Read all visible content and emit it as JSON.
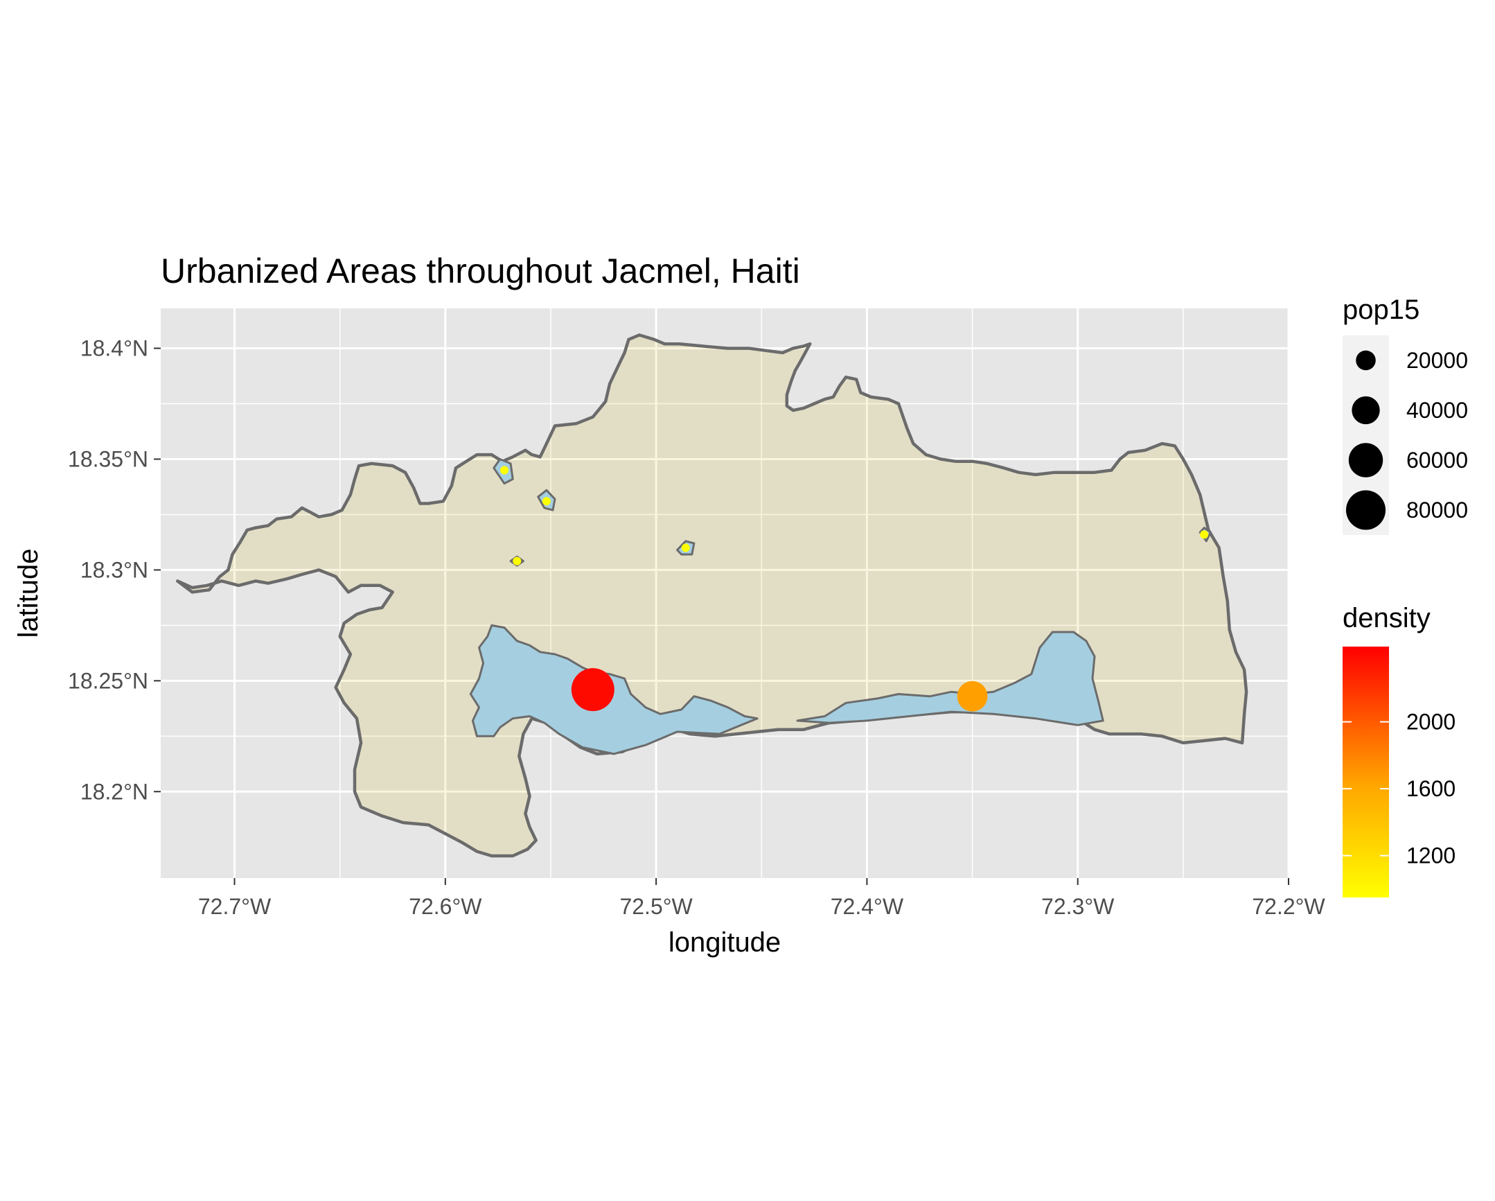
{
  "title": "Urbanized Areas throughout Jacmel, Haiti",
  "xlabel": "longitude",
  "ylabel": "latitude",
  "colors": {
    "panel_bg": "#e6e6e6",
    "grid": "#ffffff",
    "land_fill": "#e2dec6",
    "land_grid": "#faf5de",
    "land_border": "#6b6b6b",
    "urban_fill": "#a5cfe0",
    "density_low": "#ffff00",
    "density_mid": "#ffa500",
    "density_high": "#ff0000"
  },
  "chart_data": {
    "type": "scatter",
    "xlim": [
      -72.735,
      -72.2
    ],
    "ylim": [
      18.161,
      18.418
    ],
    "x_ticks": [
      {
        "value": -72.7,
        "label": "72.7°W"
      },
      {
        "value": -72.6,
        "label": "72.6°W"
      },
      {
        "value": -72.5,
        "label": "72.5°W"
      },
      {
        "value": -72.4,
        "label": "72.4°W"
      },
      {
        "value": -72.3,
        "label": "72.3°W"
      },
      {
        "value": -72.2,
        "label": "72.2°W"
      }
    ],
    "y_ticks": [
      {
        "value": 18.2,
        "label": "18.2°N"
      },
      {
        "value": 18.25,
        "label": "18.25°N"
      },
      {
        "value": 18.3,
        "label": "18.3°N"
      },
      {
        "value": 18.35,
        "label": "18.35°N"
      },
      {
        "value": 18.4,
        "label": "18.4°N"
      }
    ],
    "grid": true,
    "points": [
      {
        "lon": -72.53,
        "lat": 18.246,
        "pop15": 80000,
        "density": 2400
      },
      {
        "lon": -72.35,
        "lat": 18.243,
        "pop15": 40000,
        "density": 1650
      },
      {
        "lon": -72.572,
        "lat": 18.345,
        "pop15": 2000,
        "density": 950
      },
      {
        "lon": -72.552,
        "lat": 18.331,
        "pop15": 2000,
        "density": 950
      },
      {
        "lon": -72.566,
        "lat": 18.304,
        "pop15": 1500,
        "density": 950
      },
      {
        "lon": -72.486,
        "lat": 18.31,
        "pop15": 2000,
        "density": 950
      },
      {
        "lon": -72.24,
        "lat": 18.316,
        "pop15": 2000,
        "density": 950
      }
    ],
    "legend_size": {
      "title": "pop15",
      "entries": [
        {
          "value": 20000,
          "label": "20000"
        },
        {
          "value": 40000,
          "label": "40000"
        },
        {
          "value": 60000,
          "label": "60000"
        },
        {
          "value": 80000,
          "label": "80000"
        }
      ]
    },
    "legend_color": {
      "title": "density",
      "range": [
        950,
        2450
      ],
      "ticks": [
        {
          "value": 1200,
          "label": "1200"
        },
        {
          "value": 1600,
          "label": "1600"
        },
        {
          "value": 2000,
          "label": "2000"
        }
      ]
    },
    "land_outline": [
      [
        -72.727,
        18.295
      ],
      [
        -72.72,
        18.29
      ],
      [
        -72.712,
        18.291
      ],
      [
        -72.707,
        18.297
      ],
      [
        -72.703,
        18.3
      ],
      [
        -72.701,
        18.307
      ],
      [
        -72.697,
        18.313
      ],
      [
        -72.694,
        18.318
      ],
      [
        -72.69,
        18.319
      ],
      [
        -72.684,
        18.32
      ],
      [
        -72.68,
        18.323
      ],
      [
        -72.673,
        18.324
      ],
      [
        -72.668,
        18.328
      ],
      [
        -72.664,
        18.326
      ],
      [
        -72.66,
        18.324
      ],
      [
        -72.654,
        18.325
      ],
      [
        -72.649,
        18.327
      ],
      [
        -72.645,
        18.334
      ],
      [
        -72.643,
        18.341
      ],
      [
        -72.641,
        18.347
      ],
      [
        -72.635,
        18.348
      ],
      [
        -72.625,
        18.347
      ],
      [
        -72.619,
        18.344
      ],
      [
        -72.615,
        18.337
      ],
      [
        -72.612,
        18.33
      ],
      [
        -72.608,
        18.33
      ],
      [
        -72.601,
        18.331
      ],
      [
        -72.597,
        18.338
      ],
      [
        -72.595,
        18.346
      ],
      [
        -72.59,
        18.349
      ],
      [
        -72.585,
        18.352
      ],
      [
        -72.578,
        18.352
      ],
      [
        -72.573,
        18.349
      ],
      [
        -72.568,
        18.351
      ],
      [
        -72.562,
        18.354
      ],
      [
        -72.559,
        18.352
      ],
      [
        -72.555,
        18.351
      ],
      [
        -72.552,
        18.357
      ],
      [
        -72.548,
        18.365
      ],
      [
        -72.538,
        18.366
      ],
      [
        -72.53,
        18.369
      ],
      [
        -72.524,
        18.376
      ],
      [
        -72.522,
        18.384
      ],
      [
        -72.518,
        18.392
      ],
      [
        -72.515,
        18.398
      ],
      [
        -72.513,
        18.404
      ],
      [
        -72.508,
        18.406
      ],
      [
        -72.501,
        18.404
      ],
      [
        -72.496,
        18.402
      ],
      [
        -72.489,
        18.402
      ],
      [
        -72.478,
        18.401
      ],
      [
        -72.466,
        18.4
      ],
      [
        -72.456,
        18.4
      ],
      [
        -72.448,
        18.399
      ],
      [
        -72.44,
        18.398
      ],
      [
        -72.435,
        18.4
      ],
      [
        -72.43,
        18.401
      ],
      [
        -72.427,
        18.402
      ],
      [
        -72.431,
        18.395
      ],
      [
        -72.434,
        18.39
      ],
      [
        -72.436,
        18.385
      ],
      [
        -72.438,
        18.379
      ],
      [
        -72.438,
        18.374
      ],
      [
        -72.435,
        18.372
      ],
      [
        -72.43,
        18.373
      ],
      [
        -72.425,
        18.375
      ],
      [
        -72.42,
        18.377
      ],
      [
        -72.416,
        18.378
      ],
      [
        -72.413,
        18.383
      ],
      [
        -72.41,
        18.387
      ],
      [
        -72.405,
        18.386
      ],
      [
        -72.403,
        18.38
      ],
      [
        -72.398,
        18.378
      ],
      [
        -72.39,
        18.377
      ],
      [
        -72.385,
        18.375
      ],
      [
        -72.381,
        18.364
      ],
      [
        -72.378,
        18.357
      ],
      [
        -72.372,
        18.352
      ],
      [
        -72.365,
        18.35
      ],
      [
        -72.358,
        18.349
      ],
      [
        -72.35,
        18.349
      ],
      [
        -72.343,
        18.348
      ],
      [
        -72.335,
        18.346
      ],
      [
        -72.328,
        18.344
      ],
      [
        -72.32,
        18.343
      ],
      [
        -72.311,
        18.344
      ],
      [
        -72.3,
        18.344
      ],
      [
        -72.292,
        18.344
      ],
      [
        -72.284,
        18.345
      ],
      [
        -72.28,
        18.35
      ],
      [
        -72.276,
        18.353
      ],
      [
        -72.268,
        18.354
      ],
      [
        -72.26,
        18.357
      ],
      [
        -72.254,
        18.356
      ],
      [
        -72.25,
        18.35
      ],
      [
        -72.246,
        18.343
      ],
      [
        -72.242,
        18.334
      ],
      [
        -72.24,
        18.326
      ],
      [
        -72.238,
        18.318
      ],
      [
        -72.233,
        18.31
      ],
      [
        -72.231,
        18.297
      ],
      [
        -72.229,
        18.286
      ],
      [
        -72.228,
        18.273
      ],
      [
        -72.225,
        18.263
      ],
      [
        -72.221,
        18.255
      ],
      [
        -72.22,
        18.245
      ],
      [
        -72.221,
        18.235
      ],
      [
        -72.222,
        18.222
      ],
      [
        -72.23,
        18.224
      ],
      [
        -72.24,
        18.223
      ],
      [
        -72.25,
        18.222
      ],
      [
        -72.26,
        18.225
      ],
      [
        -72.27,
        18.226
      ],
      [
        -72.285,
        18.226
      ],
      [
        -72.292,
        18.228
      ],
      [
        -72.297,
        18.231
      ],
      [
        -72.31,
        18.233
      ],
      [
        -72.323,
        18.234
      ],
      [
        -72.336,
        18.235
      ],
      [
        -72.35,
        18.236
      ],
      [
        -72.36,
        18.236
      ],
      [
        -72.372,
        18.235
      ],
      [
        -72.384,
        18.234
      ],
      [
        -72.395,
        18.233
      ],
      [
        -72.405,
        18.232
      ],
      [
        -72.418,
        18.231
      ],
      [
        -72.43,
        18.228
      ],
      [
        -72.442,
        18.228
      ],
      [
        -72.452,
        18.227
      ],
      [
        -72.462,
        18.226
      ],
      [
        -72.472,
        18.225
      ],
      [
        -72.484,
        18.226
      ],
      [
        -72.494,
        18.229
      ],
      [
        -72.504,
        18.224
      ],
      [
        -72.516,
        18.218
      ],
      [
        -72.528,
        18.217
      ],
      [
        -72.536,
        18.22
      ],
      [
        -72.545,
        18.226
      ],
      [
        -72.552,
        18.231
      ],
      [
        -72.559,
        18.233
      ],
      [
        -72.563,
        18.226
      ],
      [
        -72.565,
        18.216
      ],
      [
        -72.562,
        18.206
      ],
      [
        -72.56,
        18.198
      ],
      [
        -72.562,
        18.19
      ],
      [
        -72.56,
        18.184
      ],
      [
        -72.557,
        18.178
      ],
      [
        -72.561,
        18.174
      ],
      [
        -72.568,
        18.171
      ],
      [
        -72.578,
        18.171
      ],
      [
        -72.585,
        18.173
      ],
      [
        -72.592,
        18.177
      ],
      [
        -72.6,
        18.181
      ],
      [
        -72.608,
        18.185
      ],
      [
        -72.62,
        18.186
      ],
      [
        -72.63,
        18.189
      ],
      [
        -72.64,
        18.193
      ],
      [
        -72.643,
        18.2
      ],
      [
        -72.643,
        18.21
      ],
      [
        -72.64,
        18.222
      ],
      [
        -72.642,
        18.233
      ],
      [
        -72.648,
        18.24
      ],
      [
        -72.652,
        18.247
      ],
      [
        -72.648,
        18.255
      ],
      [
        -72.645,
        18.262
      ],
      [
        -72.65,
        18.27
      ],
      [
        -72.648,
        18.276
      ],
      [
        -72.642,
        18.28
      ],
      [
        -72.636,
        18.282
      ],
      [
        -72.63,
        18.283
      ],
      [
        -72.625,
        18.29
      ],
      [
        -72.631,
        18.293
      ],
      [
        -72.64,
        18.293
      ],
      [
        -72.646,
        18.29
      ],
      [
        -72.652,
        18.297
      ],
      [
        -72.66,
        18.3
      ],
      [
        -72.668,
        18.298
      ],
      [
        -72.675,
        18.296
      ],
      [
        -72.684,
        18.294
      ],
      [
        -72.69,
        18.295
      ],
      [
        -72.698,
        18.293
      ],
      [
        -72.706,
        18.295
      ],
      [
        -72.713,
        18.293
      ],
      [
        -72.72,
        18.292
      ],
      [
        -72.727,
        18.295
      ]
    ],
    "urban_areas": [
      [
        [
          -72.578,
          18.275
        ],
        [
          -72.572,
          18.274
        ],
        [
          -72.566,
          18.268
        ],
        [
          -72.56,
          18.266
        ],
        [
          -72.555,
          18.263
        ],
        [
          -72.548,
          18.262
        ],
        [
          -72.542,
          18.26
        ],
        [
          -72.535,
          18.256
        ],
        [
          -72.53,
          18.254
        ],
        [
          -72.522,
          18.253
        ],
        [
          -72.515,
          18.251
        ],
        [
          -72.512,
          18.244
        ],
        [
          -72.505,
          18.238
        ],
        [
          -72.498,
          18.235
        ],
        [
          -72.488,
          18.237
        ],
        [
          -72.482,
          18.243
        ],
        [
          -72.474,
          18.241
        ],
        [
          -72.466,
          18.238
        ],
        [
          -72.458,
          18.234
        ],
        [
          -72.452,
          18.233
        ],
        [
          -72.47,
          18.226
        ],
        [
          -72.49,
          18.227
        ],
        [
          -72.505,
          18.221
        ],
        [
          -72.52,
          18.217
        ],
        [
          -72.535,
          18.22
        ],
        [
          -72.546,
          18.226
        ],
        [
          -72.553,
          18.231
        ],
        [
          -72.56,
          18.234
        ],
        [
          -72.568,
          18.233
        ],
        [
          -72.574,
          18.229
        ],
        [
          -72.577,
          18.225
        ],
        [
          -72.585,
          18.225
        ],
        [
          -72.587,
          18.232
        ],
        [
          -72.584,
          18.238
        ],
        [
          -72.588,
          18.244
        ],
        [
          -72.584,
          18.251
        ],
        [
          -72.582,
          18.258
        ],
        [
          -72.584,
          18.265
        ],
        [
          -72.58,
          18.27
        ],
        [
          -72.578,
          18.275
        ]
      ],
      [
        [
          -72.433,
          18.232
        ],
        [
          -72.42,
          18.234
        ],
        [
          -72.41,
          18.24
        ],
        [
          -72.395,
          18.242
        ],
        [
          -72.385,
          18.244
        ],
        [
          -72.37,
          18.243
        ],
        [
          -72.36,
          18.245
        ],
        [
          -72.35,
          18.244
        ],
        [
          -72.34,
          18.245
        ],
        [
          -72.33,
          18.249
        ],
        [
          -72.322,
          18.253
        ],
        [
          -72.318,
          18.265
        ],
        [
          -72.312,
          18.272
        ],
        [
          -72.302,
          18.272
        ],
        [
          -72.296,
          18.268
        ],
        [
          -72.292,
          18.261
        ],
        [
          -72.293,
          18.251
        ],
        [
          -72.29,
          18.24
        ],
        [
          -72.288,
          18.232
        ],
        [
          -72.3,
          18.23
        ],
        [
          -72.32,
          18.233
        ],
        [
          -72.34,
          18.235
        ],
        [
          -72.36,
          18.236
        ],
        [
          -72.38,
          18.234
        ],
        [
          -72.4,
          18.232
        ],
        [
          -72.418,
          18.231
        ],
        [
          -72.433,
          18.232
        ]
      ],
      [
        [
          -72.577,
          18.346
        ],
        [
          -72.574,
          18.35
        ],
        [
          -72.569,
          18.348
        ],
        [
          -72.568,
          18.341
        ],
        [
          -72.572,
          18.339
        ],
        [
          -72.577,
          18.346
        ]
      ],
      [
        [
          -72.556,
          18.333
        ],
        [
          -72.552,
          18.336
        ],
        [
          -72.548,
          18.332
        ],
        [
          -72.549,
          18.327
        ],
        [
          -72.553,
          18.328
        ],
        [
          -72.556,
          18.333
        ]
      ],
      [
        [
          -72.49,
          18.309
        ],
        [
          -72.486,
          18.313
        ],
        [
          -72.482,
          18.312
        ],
        [
          -72.483,
          18.307
        ],
        [
          -72.488,
          18.307
        ],
        [
          -72.49,
          18.309
        ]
      ],
      [
        [
          -72.569,
          18.304
        ],
        [
          -72.566,
          18.306
        ],
        [
          -72.563,
          18.304
        ],
        [
          -72.566,
          18.302
        ],
        [
          -72.569,
          18.304
        ]
      ],
      [
        [
          -72.242,
          18.317
        ],
        [
          -72.24,
          18.319
        ],
        [
          -72.237,
          18.317
        ],
        [
          -72.239,
          18.313
        ],
        [
          -72.242,
          18.317
        ]
      ]
    ]
  }
}
